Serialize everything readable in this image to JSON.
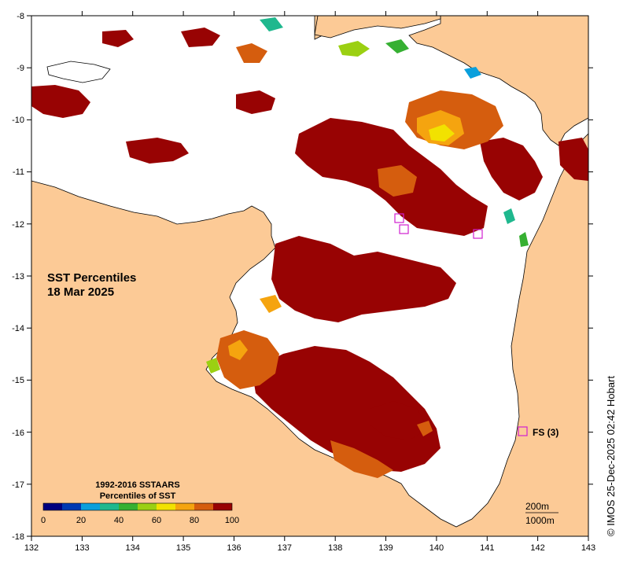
{
  "map": {
    "title_line1": "SST Percentiles",
    "title_line2": "18 Mar 2025",
    "credit": "© IMOS 25-Dec-2025 02:42 Hobart",
    "x_ticks": [
      "132",
      "133",
      "134",
      "135",
      "136",
      "137",
      "138",
      "139",
      "140",
      "141",
      "142",
      "143"
    ],
    "y_ticks": [
      "-8",
      "-9",
      "-10",
      "-11",
      "-12",
      "-13",
      "-14",
      "-15",
      "-16",
      "-17",
      "-18"
    ],
    "station_label": "FS (3)",
    "depth_200": "200m",
    "depth_1000": "1000m",
    "land_color": "#fcca96",
    "ocean_color": "#ffffff"
  },
  "legend": {
    "title_line1": "1992-2016 SSTAARS",
    "title_line2": "Percentiles of SST",
    "tick_labels": [
      "0",
      "20",
      "40",
      "60",
      "80",
      "100"
    ],
    "colors": [
      "#00007f",
      "#0039b2",
      "#0a9fdc",
      "#1fb88e",
      "#36b032",
      "#9bd012",
      "#f2e200",
      "#f5a40f",
      "#d55d0e",
      "#980303"
    ]
  }
}
